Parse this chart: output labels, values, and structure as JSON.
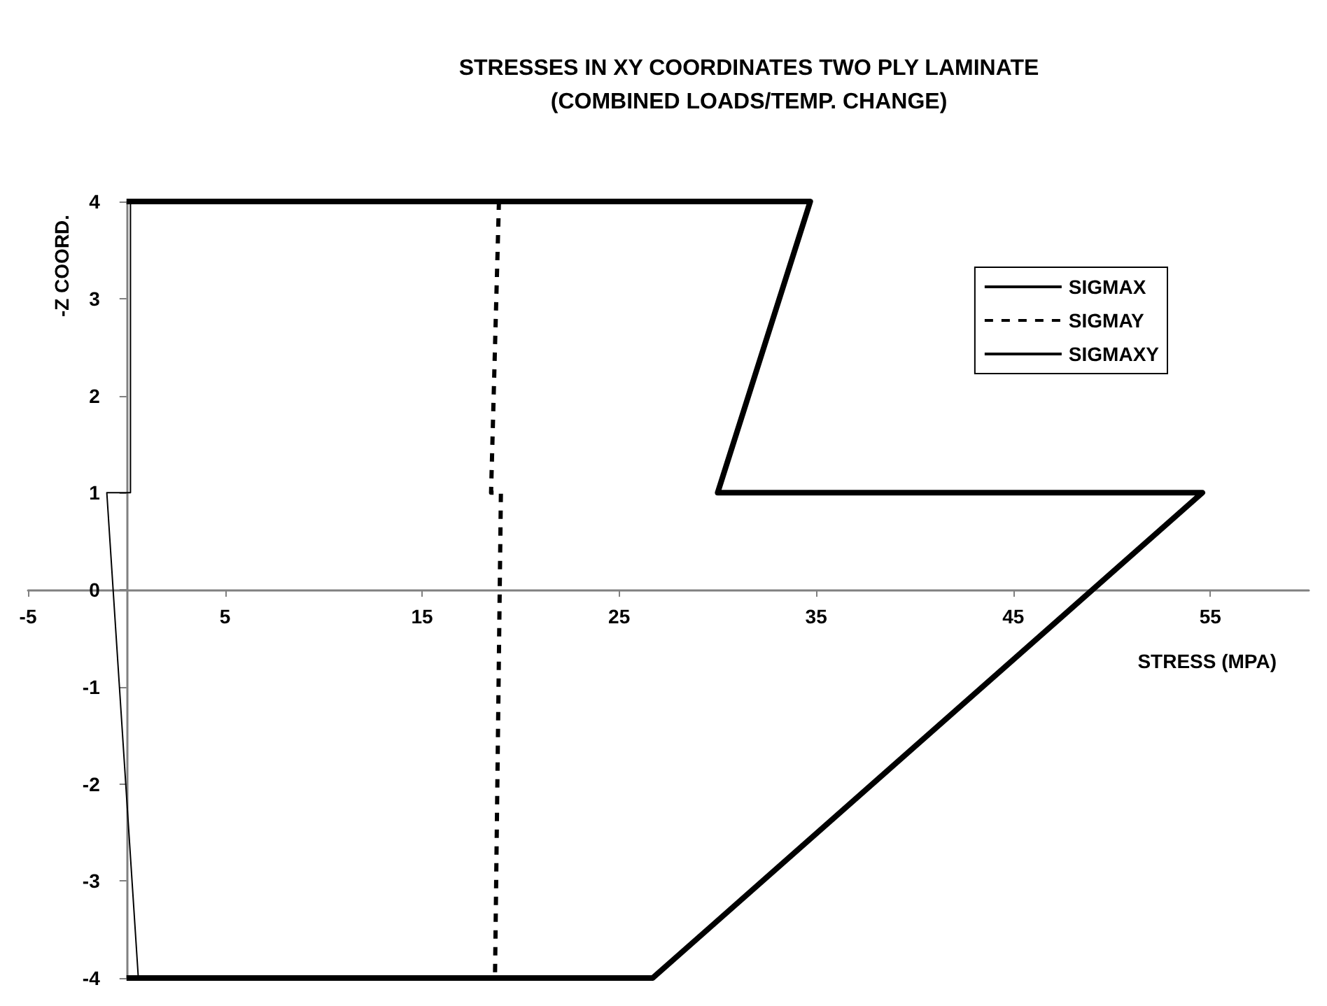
{
  "chart_data": {
    "type": "line",
    "title": "STRESSES IN XY COORDINATES TWO PLY LAMINATE\n(COMBINED LOADS/TEMP. CHANGE)",
    "xlabel": "STRESS (MPA)",
    "ylabel": "-Z COORD.",
    "xlim": [
      -5,
      60
    ],
    "xticks": [
      -5,
      5,
      15,
      25,
      35,
      45,
      55
    ],
    "ylim": [
      -4,
      4
    ],
    "yticks": [
      -4,
      -3,
      -2,
      -1,
      0,
      1,
      2,
      3,
      4
    ],
    "series": [
      {
        "name": "SIGMAX",
        "color": "#000000",
        "line_style": "solid",
        "x": [
          0,
          26.7,
          54.6,
          30,
          34.7,
          0
        ],
        "values": [
          -4,
          -4,
          1,
          1,
          4,
          4
        ]
      },
      {
        "name": "SIGMAY",
        "color": "#000000",
        "line_style": "dashed",
        "x": [
          18.9,
          18.5,
          19.0,
          18.7
        ],
        "values": [
          4,
          1,
          1,
          -4
        ]
      },
      {
        "name": "SIGMAXY",
        "color": "#000000",
        "line_style": "solid",
        "x": [
          0.2,
          0.2,
          -1.0,
          0.6
        ],
        "values": [
          4,
          1,
          1,
          -4
        ]
      }
    ],
    "marker": "none",
    "grid": false,
    "legend": "top right"
  }
}
